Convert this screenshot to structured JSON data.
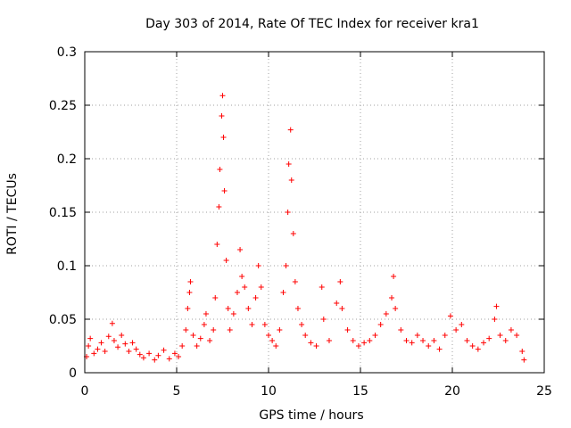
{
  "chart_data": {
    "type": "scatter",
    "title": "Day 303 of 2014, Rate Of TEC Index for receiver kra1",
    "xlabel": "GPS time / hours",
    "ylabel": "ROTI / TECUs",
    "xlim": [
      0,
      25
    ],
    "ylim": [
      0,
      0.3
    ],
    "xticks": [
      0,
      5,
      10,
      15,
      20,
      25
    ],
    "xtick_labels": [
      "0",
      "5",
      "10",
      "15",
      "20",
      "25"
    ],
    "yticks": [
      0,
      0.05,
      0.1,
      0.15,
      0.2,
      0.25,
      0.3
    ],
    "ytick_labels": [
      "0",
      "0.05",
      "0.1",
      "0.15",
      "0.2",
      "0.25",
      "0.3"
    ],
    "grid": true,
    "marker": "+",
    "color": "#ff0000",
    "series": [
      {
        "name": "ROTI",
        "points": [
          [
            0.1,
            0.015
          ],
          [
            0.2,
            0.025
          ],
          [
            0.3,
            0.032
          ],
          [
            0.5,
            0.018
          ],
          [
            0.7,
            0.022
          ],
          [
            0.9,
            0.028
          ],
          [
            1.1,
            0.02
          ],
          [
            1.3,
            0.034
          ],
          [
            1.5,
            0.046
          ],
          [
            1.6,
            0.03
          ],
          [
            1.8,
            0.024
          ],
          [
            2.0,
            0.035
          ],
          [
            2.2,
            0.027
          ],
          [
            2.4,
            0.02
          ],
          [
            2.6,
            0.028
          ],
          [
            2.8,
            0.022
          ],
          [
            3.0,
            0.017
          ],
          [
            3.2,
            0.014
          ],
          [
            3.5,
            0.018
          ],
          [
            3.8,
            0.012
          ],
          [
            4.0,
            0.016
          ],
          [
            4.3,
            0.021
          ],
          [
            4.6,
            0.013
          ],
          [
            4.9,
            0.018
          ],
          [
            5.1,
            0.015
          ],
          [
            5.3,
            0.025
          ],
          [
            5.5,
            0.04
          ],
          [
            5.6,
            0.06
          ],
          [
            5.7,
            0.075
          ],
          [
            5.75,
            0.085
          ],
          [
            5.9,
            0.035
          ],
          [
            6.1,
            0.025
          ],
          [
            6.3,
            0.032
          ],
          [
            6.5,
            0.045
          ],
          [
            6.6,
            0.055
          ],
          [
            6.8,
            0.03
          ],
          [
            7.0,
            0.04
          ],
          [
            7.1,
            0.07
          ],
          [
            7.2,
            0.12
          ],
          [
            7.3,
            0.155
          ],
          [
            7.35,
            0.19
          ],
          [
            7.45,
            0.24
          ],
          [
            7.5,
            0.259
          ],
          [
            7.55,
            0.22
          ],
          [
            7.6,
            0.17
          ],
          [
            7.7,
            0.105
          ],
          [
            7.8,
            0.06
          ],
          [
            7.9,
            0.04
          ],
          [
            8.1,
            0.055
          ],
          [
            8.3,
            0.075
          ],
          [
            8.45,
            0.115
          ],
          [
            8.55,
            0.09
          ],
          [
            8.7,
            0.08
          ],
          [
            8.9,
            0.06
          ],
          [
            9.1,
            0.045
          ],
          [
            9.3,
            0.07
          ],
          [
            9.45,
            0.1
          ],
          [
            9.6,
            0.08
          ],
          [
            9.8,
            0.045
          ],
          [
            10.0,
            0.035
          ],
          [
            10.2,
            0.03
          ],
          [
            10.4,
            0.025
          ],
          [
            10.6,
            0.04
          ],
          [
            10.8,
            0.075
          ],
          [
            10.95,
            0.1
          ],
          [
            11.05,
            0.15
          ],
          [
            11.1,
            0.195
          ],
          [
            11.2,
            0.227
          ],
          [
            11.25,
            0.18
          ],
          [
            11.35,
            0.13
          ],
          [
            11.45,
            0.085
          ],
          [
            11.6,
            0.06
          ],
          [
            11.8,
            0.045
          ],
          [
            12.0,
            0.035
          ],
          [
            12.3,
            0.028
          ],
          [
            12.6,
            0.025
          ],
          [
            12.9,
            0.08
          ],
          [
            13.0,
            0.05
          ],
          [
            13.3,
            0.03
          ],
          [
            13.7,
            0.065
          ],
          [
            13.9,
            0.085
          ],
          [
            14.0,
            0.06
          ],
          [
            14.3,
            0.04
          ],
          [
            14.6,
            0.03
          ],
          [
            14.9,
            0.025
          ],
          [
            15.2,
            0.028
          ],
          [
            15.5,
            0.03
          ],
          [
            15.8,
            0.035
          ],
          [
            16.1,
            0.045
          ],
          [
            16.4,
            0.055
          ],
          [
            16.7,
            0.07
          ],
          [
            16.8,
            0.09
          ],
          [
            16.9,
            0.06
          ],
          [
            17.2,
            0.04
          ],
          [
            17.5,
            0.03
          ],
          [
            17.8,
            0.028
          ],
          [
            18.1,
            0.035
          ],
          [
            18.4,
            0.03
          ],
          [
            18.7,
            0.025
          ],
          [
            19.0,
            0.03
          ],
          [
            19.3,
            0.022
          ],
          [
            19.6,
            0.035
          ],
          [
            19.9,
            0.053
          ],
          [
            20.2,
            0.04
          ],
          [
            20.5,
            0.045
          ],
          [
            20.8,
            0.03
          ],
          [
            21.1,
            0.025
          ],
          [
            21.4,
            0.022
          ],
          [
            21.7,
            0.028
          ],
          [
            22.0,
            0.032
          ],
          [
            22.3,
            0.05
          ],
          [
            22.4,
            0.062
          ],
          [
            22.6,
            0.035
          ],
          [
            22.9,
            0.03
          ],
          [
            23.2,
            0.04
          ],
          [
            23.5,
            0.035
          ],
          [
            23.8,
            0.02
          ],
          [
            23.9,
            0.012
          ]
        ]
      }
    ]
  }
}
